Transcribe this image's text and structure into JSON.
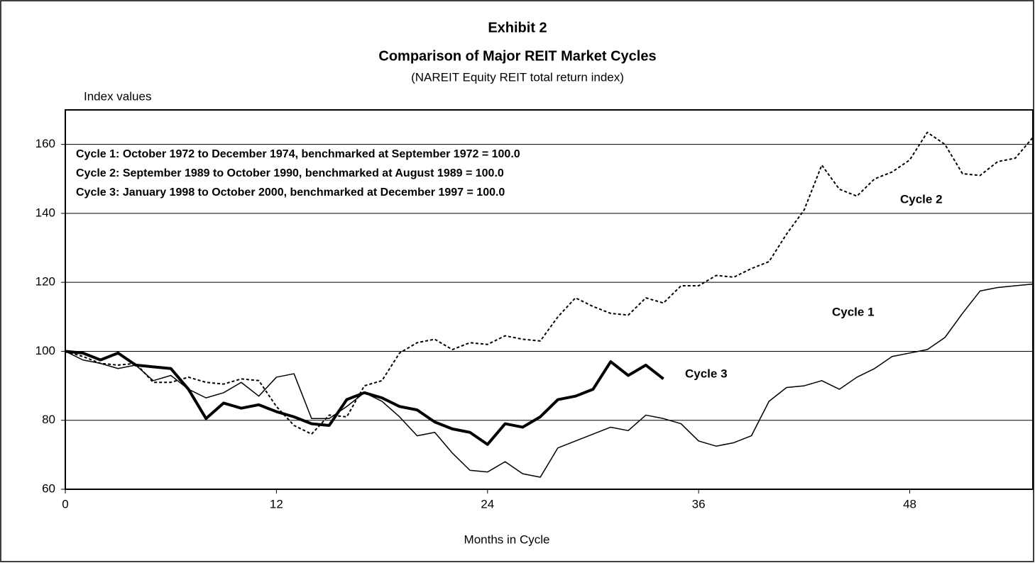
{
  "chart_data": {
    "type": "line",
    "title": "Exhibit 2",
    "subtitle": "Comparison of Major REIT Market Cycles",
    "subtitle2": "(NAREIT Equity REIT total return index)",
    "y_label": "Index values",
    "x_label": "Months in Cycle",
    "notes": [
      "Cycle 1: October 1972 to December 1974, benchmarked at September 1972 = 100.0",
      "Cycle 2: September 1989 to October 1990, benchmarked at August 1989 = 100.0",
      "Cycle 3: January 1998 to October 2000, benchmarked at December 1997 = 100.0"
    ],
    "x": [
      0,
      1,
      2,
      3,
      4,
      5,
      6,
      7,
      8,
      9,
      10,
      11,
      12,
      13,
      14,
      15,
      16,
      17,
      18,
      19,
      20,
      21,
      22,
      23,
      24,
      25,
      26,
      27,
      28,
      29,
      30,
      31,
      32,
      33,
      34,
      35,
      36,
      37,
      38,
      39,
      40,
      41,
      42,
      43,
      44,
      45,
      46,
      47,
      48,
      49,
      50,
      51,
      52,
      53,
      54,
      55
    ],
    "series": [
      {
        "name": "Cycle 1",
        "color": "#000000",
        "line_style": "solid",
        "line_width": 1.5,
        "values": [
          100,
          97.5,
          96.5,
          95,
          96,
          91.5,
          93,
          89,
          86.5,
          88,
          91,
          87,
          92.5,
          93.5,
          80.5,
          80.5,
          84,
          88,
          85.5,
          81,
          75.5,
          76.5,
          70.5,
          65.5,
          65,
          68,
          64.5,
          63.5,
          72,
          74,
          76,
          78,
          77,
          81.5,
          80.5,
          79,
          74,
          72.5,
          73.5,
          75.5,
          85.5,
          89.5,
          90,
          91.5,
          89,
          92.5,
          95,
          98.5,
          99.5,
          100.5,
          104,
          111,
          117.5,
          118.5,
          119,
          119.5
        ]
      },
      {
        "name": "Cycle 2",
        "color": "#000000",
        "line_style": "dotted",
        "line_width": 2,
        "values": [
          100,
          98.5,
          96.5,
          96,
          96.5,
          91,
          91,
          92.5,
          91,
          90.5,
          92,
          91.5,
          84,
          78.5,
          76,
          81.5,
          81,
          90,
          91.5,
          99.5,
          102.5,
          103.5,
          100.5,
          102.5,
          102,
          104.5,
          103.5,
          103,
          110,
          115.5,
          113,
          111,
          110.5,
          115.5,
          114,
          119,
          119,
          122,
          121.5,
          124,
          126,
          134,
          141,
          154,
          147,
          145,
          150,
          152,
          155.5,
          163.5,
          160,
          151.5,
          151,
          155,
          156,
          162
        ]
      },
      {
        "name": "Cycle 3",
        "color": "#000000",
        "line_style": "solid",
        "line_width": 4,
        "values": [
          100,
          99.5,
          97.5,
          99.5,
          96,
          95.5,
          95,
          89,
          80.5,
          85,
          83.5,
          84.5,
          82.5,
          81,
          79,
          78.5,
          86,
          88,
          86.5,
          84,
          83,
          79.5,
          77.5,
          76.5,
          73,
          79,
          78,
          81,
          86,
          87,
          89,
          97,
          93,
          96,
          92,
          null,
          null,
          null,
          null,
          null,
          null,
          null,
          null,
          null,
          null,
          null,
          null,
          null,
          null,
          null,
          null,
          null,
          null,
          null,
          null,
          null
        ]
      }
    ],
    "xlim": [
      0,
      55
    ],
    "xticks": [
      0,
      12,
      24,
      36,
      48
    ],
    "ylim": [
      60,
      170
    ],
    "yticks": [
      60,
      80,
      100,
      120,
      140,
      160
    ],
    "grid": true
  }
}
